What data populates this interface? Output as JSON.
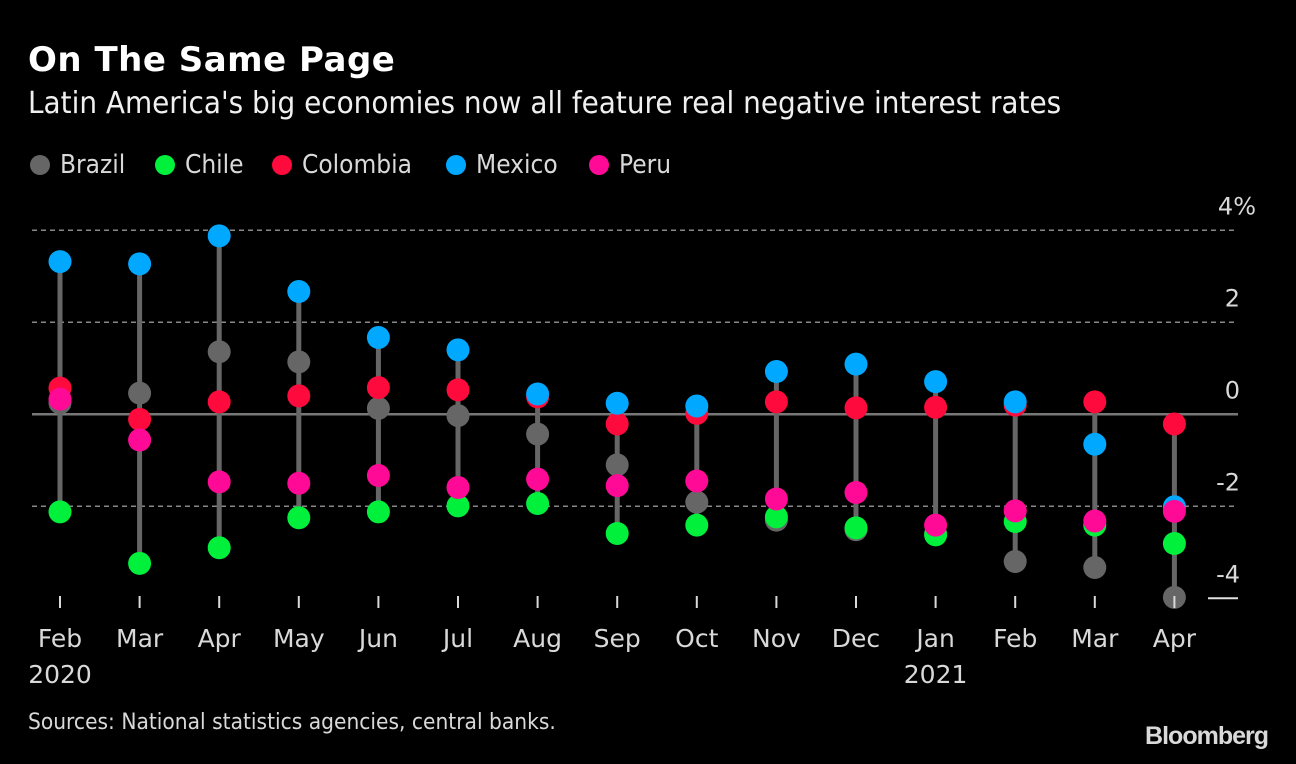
{
  "header": {
    "title": "On The Same Page",
    "subtitle": "Latin America's big economies now all feature real negative interest rates"
  },
  "legend": [
    {
      "name": "Brazil",
      "color": "#666666"
    },
    {
      "name": "Chile",
      "color": "#00f03c"
    },
    {
      "name": "Colombia",
      "color": "#ff0a3c"
    },
    {
      "name": "Mexico",
      "color": "#00a8ff"
    },
    {
      "name": "Peru",
      "color": "#ff0a96"
    }
  ],
  "footer": {
    "source": "Sources: National statistics agencies, central banks.",
    "brand": "Bloomberg"
  },
  "chart_data": {
    "type": "scatter",
    "subtype": "dot-range",
    "title": "On The Same Page",
    "subtitle": "Latin America's big economies now all feature real negative interest rates",
    "xlabel": "",
    "ylabel": "",
    "categories": [
      "Feb",
      "Mar",
      "Apr",
      "May",
      "Jun",
      "Jul",
      "Aug",
      "Sep",
      "Oct",
      "Nov",
      "Dec",
      "Jan",
      "Feb",
      "Mar",
      "Apr"
    ],
    "year_labels": [
      {
        "index": 0,
        "label": "2020"
      },
      {
        "index": 11,
        "label": "2021"
      }
    ],
    "ylim": [
      -4,
      4
    ],
    "yticks": [
      {
        "value": 4,
        "label": "4%"
      },
      {
        "value": 2,
        "label": "2"
      },
      {
        "value": 0,
        "label": "0"
      },
      {
        "value": -2,
        "label": "-2"
      },
      {
        "value": -4,
        "label": "-4"
      }
    ],
    "grid": true,
    "legend_position": "top-left",
    "series": [
      {
        "name": "Brazil",
        "color": "#666666",
        "values": [
          0.25,
          0.46,
          1.36,
          1.14,
          0.13,
          -0.03,
          -0.43,
          -1.1,
          -1.91,
          -2.3,
          -2.51,
          -2.6,
          -3.2,
          -3.33,
          -3.98
        ]
      },
      {
        "name": "Chile",
        "color": "#00f03c",
        "values": [
          -2.12,
          -3.24,
          -2.9,
          -2.25,
          -2.12,
          -1.99,
          -1.94,
          -2.59,
          -2.41,
          -2.23,
          -2.47,
          -2.62,
          -2.33,
          -2.41,
          -2.81
        ]
      },
      {
        "name": "Colombia",
        "color": "#ff0a3c",
        "values": [
          0.57,
          -0.11,
          0.27,
          0.4,
          0.58,
          0.53,
          0.38,
          -0.21,
          0.02,
          0.27,
          0.14,
          0.15,
          0.2,
          0.27,
          -0.21
        ]
      },
      {
        "name": "Mexico",
        "color": "#00a8ff",
        "values": [
          3.32,
          3.27,
          3.88,
          2.67,
          1.67,
          1.4,
          0.44,
          0.24,
          0.18,
          0.93,
          1.09,
          0.71,
          0.27,
          -0.65,
          -2.01
        ]
      },
      {
        "name": "Peru",
        "color": "#ff0a96",
        "values": [
          0.33,
          -0.56,
          -1.47,
          -1.5,
          -1.33,
          -1.59,
          -1.41,
          -1.55,
          -1.45,
          -1.84,
          -1.7,
          -2.41,
          -2.1,
          -2.32,
          -2.11
        ]
      }
    ]
  }
}
